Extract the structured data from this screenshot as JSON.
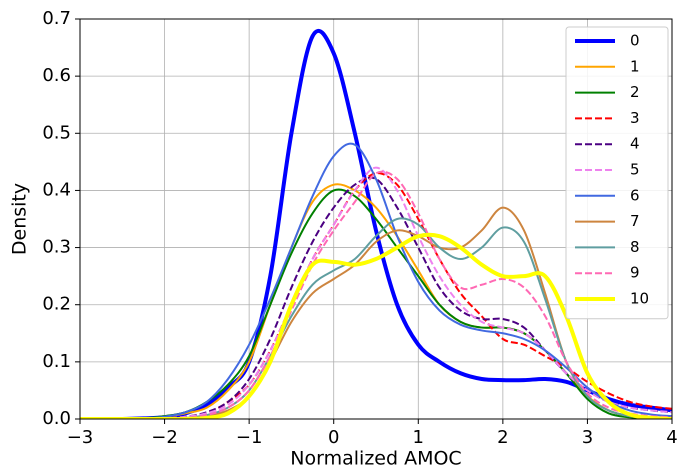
{
  "chart_data": {
    "type": "line",
    "xlabel": "Normalized AMOC",
    "ylabel": "Density",
    "x": [
      -3,
      -2.75,
      -2.5,
      -2.25,
      -2,
      -1.75,
      -1.5,
      -1.25,
      -1,
      -0.75,
      -0.5,
      -0.25,
      0,
      0.25,
      0.5,
      0.75,
      1,
      1.25,
      1.5,
      1.75,
      2,
      2.25,
      2.5,
      2.75,
      3,
      3.25,
      3.5,
      3.75,
      4
    ],
    "series": [
      {
        "name": "0",
        "color": "#0000ff",
        "width": 4,
        "dashed": false,
        "values": [
          0,
          0,
          0,
          0.001,
          0.003,
          0.01,
          0.025,
          0.055,
          0.1,
          0.25,
          0.5,
          0.67,
          0.64,
          0.5,
          0.33,
          0.2,
          0.13,
          0.1,
          0.08,
          0.07,
          0.068,
          0.068,
          0.07,
          0.065,
          0.05,
          0.035,
          0.025,
          0.02,
          0.015
        ]
      },
      {
        "name": "1",
        "color": "#ffa500",
        "width": 2,
        "dashed": false,
        "values": [
          0,
          0,
          0,
          0.001,
          0.004,
          0.01,
          0.02,
          0.05,
          0.1,
          0.2,
          0.3,
          0.38,
          0.41,
          0.4,
          0.37,
          0.32,
          0.26,
          0.2,
          0.17,
          0.16,
          0.16,
          0.15,
          0.12,
          0.08,
          0.04,
          0.015,
          0.005,
          0.002,
          0.001
        ]
      },
      {
        "name": "2",
        "color": "#008000",
        "width": 2,
        "dashed": false,
        "values": [
          0,
          0,
          0,
          0.001,
          0.005,
          0.012,
          0.03,
          0.06,
          0.11,
          0.2,
          0.29,
          0.36,
          0.4,
          0.39,
          0.35,
          0.3,
          0.25,
          0.2,
          0.17,
          0.16,
          0.16,
          0.15,
          0.12,
          0.08,
          0.035,
          0.01,
          0.003,
          0.001,
          0
        ]
      },
      {
        "name": "3",
        "color": "#ff0000",
        "width": 2,
        "dashed": true,
        "values": [
          0,
          0,
          0,
          0,
          0.001,
          0.004,
          0.01,
          0.03,
          0.06,
          0.12,
          0.2,
          0.28,
          0.34,
          0.4,
          0.43,
          0.41,
          0.35,
          0.28,
          0.22,
          0.18,
          0.14,
          0.13,
          0.11,
          0.09,
          0.065,
          0.045,
          0.03,
          0.022,
          0.018
        ]
      },
      {
        "name": "4",
        "color": "#4b0082",
        "width": 2,
        "dashed": true,
        "values": [
          0,
          0,
          0,
          0,
          0.001,
          0.004,
          0.012,
          0.03,
          0.07,
          0.14,
          0.23,
          0.31,
          0.37,
          0.41,
          0.42,
          0.37,
          0.3,
          0.23,
          0.19,
          0.175,
          0.175,
          0.16,
          0.12,
          0.08,
          0.05,
          0.03,
          0.02,
          0.015,
          0.012
        ]
      },
      {
        "name": "5",
        "color": "#ee82ee",
        "width": 2,
        "dashed": true,
        "values": [
          0,
          0,
          0,
          0,
          0.001,
          0.004,
          0.01,
          0.025,
          0.06,
          0.12,
          0.2,
          0.28,
          0.34,
          0.4,
          0.44,
          0.4,
          0.32,
          0.25,
          0.2,
          0.17,
          0.16,
          0.15,
          0.12,
          0.08,
          0.05,
          0.03,
          0.02,
          0.015,
          0.012
        ]
      },
      {
        "name": "6",
        "color": "#4169e1",
        "width": 2,
        "dashed": false,
        "values": [
          0,
          0,
          0,
          0.001,
          0.004,
          0.012,
          0.03,
          0.07,
          0.13,
          0.21,
          0.3,
          0.39,
          0.46,
          0.48,
          0.42,
          0.32,
          0.24,
          0.19,
          0.165,
          0.155,
          0.15,
          0.14,
          0.12,
          0.09,
          0.055,
          0.03,
          0.015,
          0.008,
          0.005
        ]
      },
      {
        "name": "7",
        "color": "#cd853f",
        "width": 2,
        "dashed": false,
        "values": [
          0,
          0,
          0,
          0,
          0,
          0.001,
          0.005,
          0.015,
          0.04,
          0.1,
          0.17,
          0.22,
          0.245,
          0.27,
          0.31,
          0.33,
          0.32,
          0.3,
          0.3,
          0.33,
          0.37,
          0.33,
          0.22,
          0.1,
          0.04,
          0.015,
          0.005,
          0.002,
          0.001
        ]
      },
      {
        "name": "8",
        "color": "#5f9ea0",
        "width": 2,
        "dashed": false,
        "values": [
          0,
          0,
          0,
          0,
          0,
          0.002,
          0.007,
          0.02,
          0.05,
          0.11,
          0.18,
          0.235,
          0.26,
          0.28,
          0.32,
          0.35,
          0.34,
          0.3,
          0.28,
          0.3,
          0.335,
          0.31,
          0.21,
          0.1,
          0.04,
          0.015,
          0.005,
          0.002,
          0.001
        ]
      },
      {
        "name": "9",
        "color": "#ff69b4",
        "width": 2,
        "dashed": true,
        "values": [
          0,
          0,
          0,
          0,
          0,
          0.002,
          0.007,
          0.02,
          0.05,
          0.11,
          0.19,
          0.27,
          0.33,
          0.38,
          0.43,
          0.42,
          0.36,
          0.28,
          0.23,
          0.235,
          0.245,
          0.23,
          0.18,
          0.1,
          0.045,
          0.02,
          0.01,
          0.005,
          0.003
        ]
      },
      {
        "name": "10",
        "color": "#ffff00",
        "width": 4,
        "dashed": false,
        "values": [
          0,
          0,
          0,
          0,
          0,
          0,
          0.002,
          0.01,
          0.04,
          0.1,
          0.2,
          0.27,
          0.275,
          0.27,
          0.28,
          0.3,
          0.32,
          0.32,
          0.3,
          0.27,
          0.25,
          0.25,
          0.25,
          0.18,
          0.08,
          0.03,
          0.008,
          0.002,
          0
        ]
      }
    ],
    "xlim": [
      -3,
      4
    ],
    "xticks": [
      {
        "value": -3,
        "label": "−3"
      },
      {
        "value": -2,
        "label": "−2"
      },
      {
        "value": -1,
        "label": "−1"
      },
      0,
      1,
      2,
      3,
      4
    ],
    "ylim": [
      0,
      0.7
    ],
    "yticks": [
      {
        "value": 0,
        "label": "0.0"
      },
      0.1,
      0.2,
      0.3,
      0.4,
      0.5,
      0.6,
      0.7
    ],
    "grid": true,
    "legend": "upper right"
  }
}
